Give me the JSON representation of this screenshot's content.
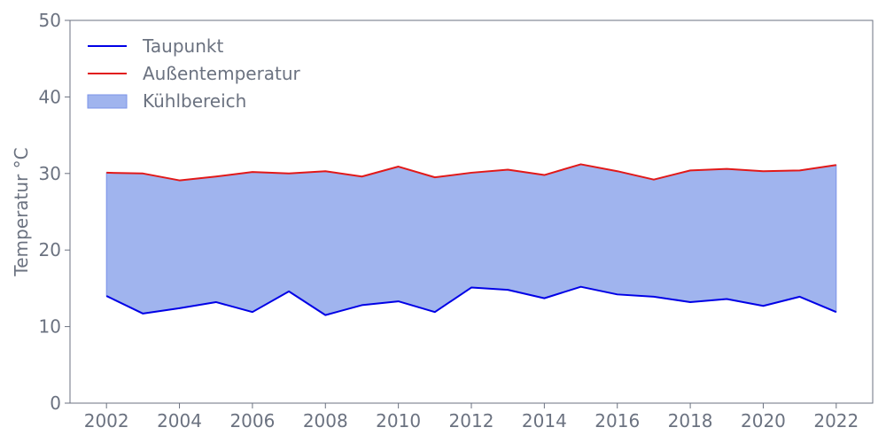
{
  "chart_data": {
    "type": "area",
    "title": "",
    "xlabel": "",
    "ylabel": "Temperatur °C",
    "xlim": [
      2001,
      2023
    ],
    "ylim": [
      0,
      50
    ],
    "x_ticks": [
      2002,
      2004,
      2006,
      2008,
      2010,
      2012,
      2014,
      2016,
      2018,
      2020,
      2022
    ],
    "y_ticks": [
      0,
      10,
      20,
      30,
      40,
      50
    ],
    "grid": false,
    "legend_position": "top-left",
    "x": [
      2002,
      2003,
      2004,
      2005,
      2006,
      2007,
      2008,
      2009,
      2010,
      2011,
      2012,
      2013,
      2014,
      2015,
      2016,
      2017,
      2018,
      2019,
      2020,
      2021,
      2022
    ],
    "series": [
      {
        "name": "Taupunkt",
        "type": "line",
        "color": "#0000e6",
        "values": [
          14.0,
          11.7,
          12.4,
          13.2,
          11.9,
          14.6,
          11.5,
          12.8,
          13.3,
          11.9,
          15.1,
          14.8,
          13.7,
          15.2,
          14.2,
          13.9,
          13.2,
          13.6,
          12.7,
          13.9,
          11.9
        ]
      },
      {
        "name": "Außentemperatur",
        "type": "line",
        "color": "#e11919",
        "values": [
          30.1,
          30.0,
          29.1,
          29.6,
          30.2,
          30.0,
          30.3,
          29.6,
          30.9,
          29.5,
          30.1,
          30.5,
          29.8,
          31.2,
          30.3,
          29.2,
          30.4,
          30.6,
          30.3,
          30.4,
          31.1
        ]
      }
    ],
    "fill": {
      "name": "Kühlbereich",
      "between": [
        "Taupunkt",
        "Außentemperatur"
      ],
      "color": "#a0b4ee",
      "edge_color": "#7b93e8"
    },
    "axis_color": "#6b7280"
  }
}
